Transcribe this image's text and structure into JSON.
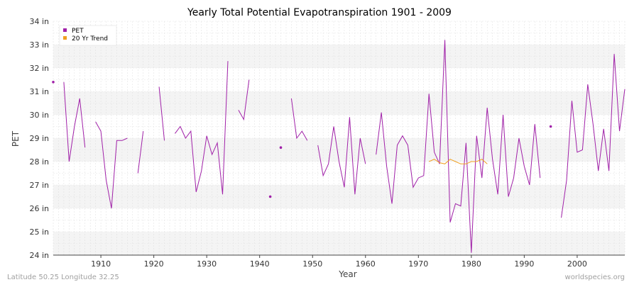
{
  "chart_data": {
    "type": "line",
    "title": "Yearly Total Potential Evapotranspiration 1901 - 2009",
    "xlabel": "Year",
    "ylabel": "PET",
    "xlim": [
      1901,
      2009
    ],
    "ylim": [
      24,
      34
    ],
    "y_unit": "in",
    "x_ticks": [
      1910,
      1920,
      1930,
      1940,
      1950,
      1960,
      1970,
      1980,
      1990,
      2000
    ],
    "y_ticks": [
      24,
      25,
      26,
      27,
      28,
      29,
      30,
      31,
      32,
      33,
      34
    ],
    "y_tick_labels": [
      "24 in",
      "25 in",
      "26 in",
      "27 in",
      "28 in",
      "29 in",
      "30 in",
      "31 in",
      "32 in",
      "33 in",
      "34 in"
    ],
    "legend_position": "top-left",
    "series": [
      {
        "name": "PET",
        "color": "#a020a8",
        "x": [
          1901,
          1902,
          1903,
          1904,
          1905,
          1906,
          1907,
          1908,
          1909,
          1910,
          1911,
          1912,
          1913,
          1914,
          1915,
          1916,
          1917,
          1918,
          1919,
          1920,
          1921,
          1922,
          1923,
          1924,
          1925,
          1926,
          1927,
          1928,
          1929,
          1930,
          1931,
          1932,
          1933,
          1934,
          1935,
          1936,
          1937,
          1938,
          1939,
          1940,
          1941,
          1942,
          1943,
          1944,
          1945,
          1946,
          1947,
          1948,
          1949,
          1950,
          1951,
          1952,
          1953,
          1954,
          1955,
          1956,
          1957,
          1958,
          1959,
          1960,
          1961,
          1962,
          1963,
          1964,
          1965,
          1966,
          1967,
          1968,
          1969,
          1970,
          1971,
          1972,
          1973,
          1974,
          1975,
          1976,
          1977,
          1978,
          1979,
          1980,
          1981,
          1982,
          1983,
          1984,
          1985,
          1986,
          1987,
          1988,
          1989,
          1990,
          1991,
          1992,
          1993,
          1994,
          1995,
          1996,
          1997,
          1998,
          1999,
          2000,
          2001,
          2002,
          2003,
          2004,
          2005,
          2006,
          2007,
          2008,
          2009
        ],
        "values": [
          31.4,
          null,
          31.4,
          28.0,
          29.5,
          30.7,
          28.6,
          null,
          29.7,
          29.3,
          27.2,
          26.0,
          28.9,
          28.9,
          29.0,
          null,
          27.5,
          29.3,
          null,
          null,
          31.2,
          28.9,
          null,
          29.2,
          29.5,
          29.0,
          29.3,
          26.7,
          27.6,
          29.1,
          28.3,
          28.8,
          26.6,
          32.3,
          null,
          30.2,
          29.8,
          31.5,
          null,
          null,
          null,
          26.5,
          null,
          28.6,
          null,
          30.7,
          29.0,
          29.3,
          28.9,
          null,
          28.7,
          27.4,
          27.9,
          29.5,
          28.0,
          26.9,
          29.9,
          26.6,
          29.0,
          27.9,
          null,
          28.3,
          30.1,
          27.8,
          26.2,
          28.7,
          29.1,
          28.7,
          26.9,
          27.3,
          27.4,
          30.9,
          28.4,
          27.9,
          33.2,
          25.4,
          26.2,
          26.1,
          28.8,
          24.1,
          29.1,
          27.3,
          30.3,
          28.1,
          26.6,
          30.0,
          26.5,
          27.3,
          29.0,
          27.8,
          27.0,
          29.6,
          27.3,
          null,
          29.5,
          null,
          25.6,
          27.2,
          30.6,
          28.4,
          28.5,
          31.3,
          29.6,
          27.6,
          29.4,
          27.6,
          32.6,
          29.3,
          31.1
        ]
      },
      {
        "name": "20 Yr Trend",
        "color": "#f0a020",
        "x": [
          1972,
          1973,
          1974,
          1975,
          1976,
          1977,
          1978,
          1979,
          1980,
          1981,
          1982,
          1983
        ],
        "values": [
          28.0,
          28.1,
          27.95,
          27.9,
          28.1,
          28.0,
          27.9,
          27.9,
          28.0,
          28.0,
          28.1,
          27.9
        ]
      }
    ],
    "footer_left": "Latitude 50.25 Longitude 32.25",
    "footer_right": "worldspecies.org"
  }
}
